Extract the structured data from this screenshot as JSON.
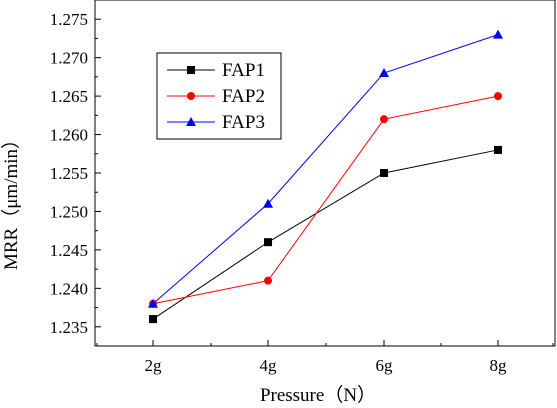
{
  "chart_data": {
    "type": "line",
    "xlabel": "Pressure（N）",
    "ylabel": "MRR（μm/min）",
    "categories": [
      "2g",
      "4g",
      "6g",
      "8g"
    ],
    "ylim": [
      1.2325,
      1.2775
    ],
    "yticks": [
      "1.235",
      "1.240",
      "1.245",
      "1.250",
      "1.255",
      "1.260",
      "1.265",
      "1.270",
      "1.275"
    ],
    "grid": false,
    "legend_position": "top-left",
    "series": [
      {
        "name": "FAP1",
        "values": [
          1.236,
          1.246,
          1.255,
          1.258
        ],
        "color": "#000000",
        "marker": "square"
      },
      {
        "name": "FAP2",
        "values": [
          1.238,
          1.241,
          1.262,
          1.265
        ],
        "color": "#ff0000",
        "marker": "circle"
      },
      {
        "name": "FAP3",
        "values": [
          1.238,
          1.251,
          1.268,
          1.273
        ],
        "color": "#0000ff",
        "marker": "triangle"
      }
    ]
  }
}
